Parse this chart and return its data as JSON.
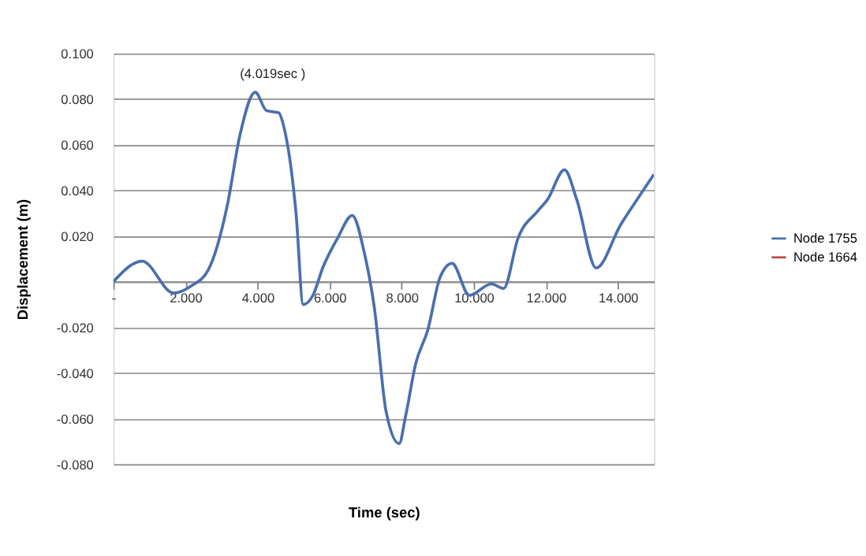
{
  "chart_data": {
    "type": "line",
    "xlabel": "Time (sec)",
    "ylabel": "Displacement (m)",
    "x": [
      0,
      0.8,
      1.67,
      2.15,
      2.63,
      3.17,
      3.51,
      3.94,
      4.25,
      4.59,
      4.73,
      5.07,
      5.27,
      5.54,
      5.81,
      6.22,
      6.63,
      6.96,
      7.24,
      7.57,
      7.93,
      8.11,
      8.39,
      8.73,
      9.07,
      9.4,
      9.88,
      10.49,
      10.83,
      11.23,
      11.78,
      12.05,
      12.52,
      12.86,
      13.4,
      14.08,
      14.62,
      15.0
    ],
    "series": [
      {
        "name": "Node 1755",
        "color": "#4a6fae",
        "values": [
          0,
          0.009,
          -0.005,
          -0.002,
          0.005,
          0.034,
          0.064,
          0.083,
          0.075,
          0.074,
          0.068,
          0.03,
          -0.01,
          -0.006,
          0.006,
          0.019,
          0.029,
          0.013,
          -0.011,
          -0.057,
          -0.071,
          -0.059,
          -0.036,
          -0.021,
          0.002,
          0.008,
          -0.006,
          -0.001,
          -0.003,
          0.019,
          0.031,
          0.036,
          0.049,
          0.036,
          0.006,
          0.025,
          0.038,
          0.047
        ]
      },
      {
        "name": "Node 1664",
        "color": "#be4b48",
        "values": [
          null,
          null,
          null,
          null,
          null,
          null,
          null,
          null,
          null,
          null,
          null,
          null,
          null,
          null,
          null,
          null,
          null,
          null,
          null,
          null,
          null,
          null,
          null,
          null,
          null,
          null,
          null,
          null,
          null,
          null,
          null,
          null,
          null,
          null,
          null,
          null,
          null,
          null
        ]
      }
    ],
    "xlim": [
      0,
      15
    ],
    "xticks": [
      {
        "value": 0,
        "label": "-"
      },
      {
        "value": 2,
        "label": "2.000"
      },
      {
        "value": 4,
        "label": "4.000"
      },
      {
        "value": 6,
        "label": "6.000"
      },
      {
        "value": 8,
        "label": "8.000"
      },
      {
        "value": 10,
        "label": "10.000"
      },
      {
        "value": 12,
        "label": "12.000"
      },
      {
        "value": 14,
        "label": "14.000"
      }
    ],
    "ylim": [
      -0.08,
      0.1
    ],
    "yticks": [
      {
        "value": -0.08,
        "label": "-0.080"
      },
      {
        "value": -0.06,
        "label": "-0.060"
      },
      {
        "value": -0.04,
        "label": "-0.040"
      },
      {
        "value": -0.02,
        "label": "-0.020"
      },
      {
        "value": 0,
        "label": null
      },
      {
        "value": 0.02,
        "label": "0.020"
      },
      {
        "value": 0.04,
        "label": "0.040"
      },
      {
        "value": 0.06,
        "label": "0.060"
      },
      {
        "value": 0.08,
        "label": "0.080"
      },
      {
        "value": 0.1,
        "label": "0.100"
      }
    ],
    "annotations": [
      {
        "text": "(4.019sec )",
        "x": 4.019,
        "y": 0.083
      }
    ],
    "grid": "y",
    "legend": "right",
    "marker": "none",
    "line_style": "solid"
  }
}
